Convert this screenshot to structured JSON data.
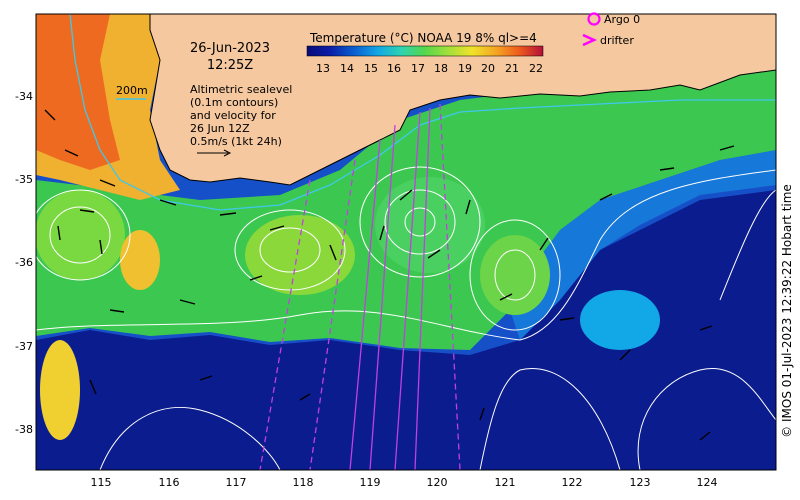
{
  "title": {
    "date": "26-Jun-2023",
    "time": "12:25Z"
  },
  "colorbar": {
    "title": "Temperature (°C) NOAA 19 8% ql>=4",
    "ticks": [
      "13",
      "14",
      "15",
      "16",
      "17",
      "18",
      "19",
      "20",
      "21",
      "22"
    ],
    "colors": [
      "#0a0a7a",
      "#0b1fa8",
      "#0a5fd0",
      "#12a7e6",
      "#2fd3b0",
      "#56d64a",
      "#a4e03a",
      "#f0e22a",
      "#f4a623",
      "#ee5a1c",
      "#d8191c",
      "#b30f3a"
    ]
  },
  "legend": {
    "argo_label": "Argo 0",
    "drifter_label": "drifter",
    "argo_color": "#ff00ff",
    "drifter_color": "#ff00ff"
  },
  "depth_label": "200m",
  "annotation": {
    "line1": "Altimetric sealevel",
    "line2": "(0.1m contours)",
    "line3": "and velocity for",
    "line4": "26 Jun 12Z",
    "line5": "0.5m/s (1kt 24h)"
  },
  "axes": {
    "lon_ticks": [
      "115",
      "116",
      "117",
      "118",
      "119",
      "120",
      "121",
      "122",
      "123",
      "124"
    ],
    "lat_ticks": [
      "-34",
      "-35",
      "-36",
      "-37",
      "-38"
    ]
  },
  "credit": "© IMOS 01-Jul-2023 12:39:22 Hobart time",
  "colors": {
    "land": "#f5c8a0",
    "deep_water": "#0b1c8e",
    "track": "#c040e0",
    "contour": "#ffffff",
    "isobath": "#40c8e8"
  }
}
